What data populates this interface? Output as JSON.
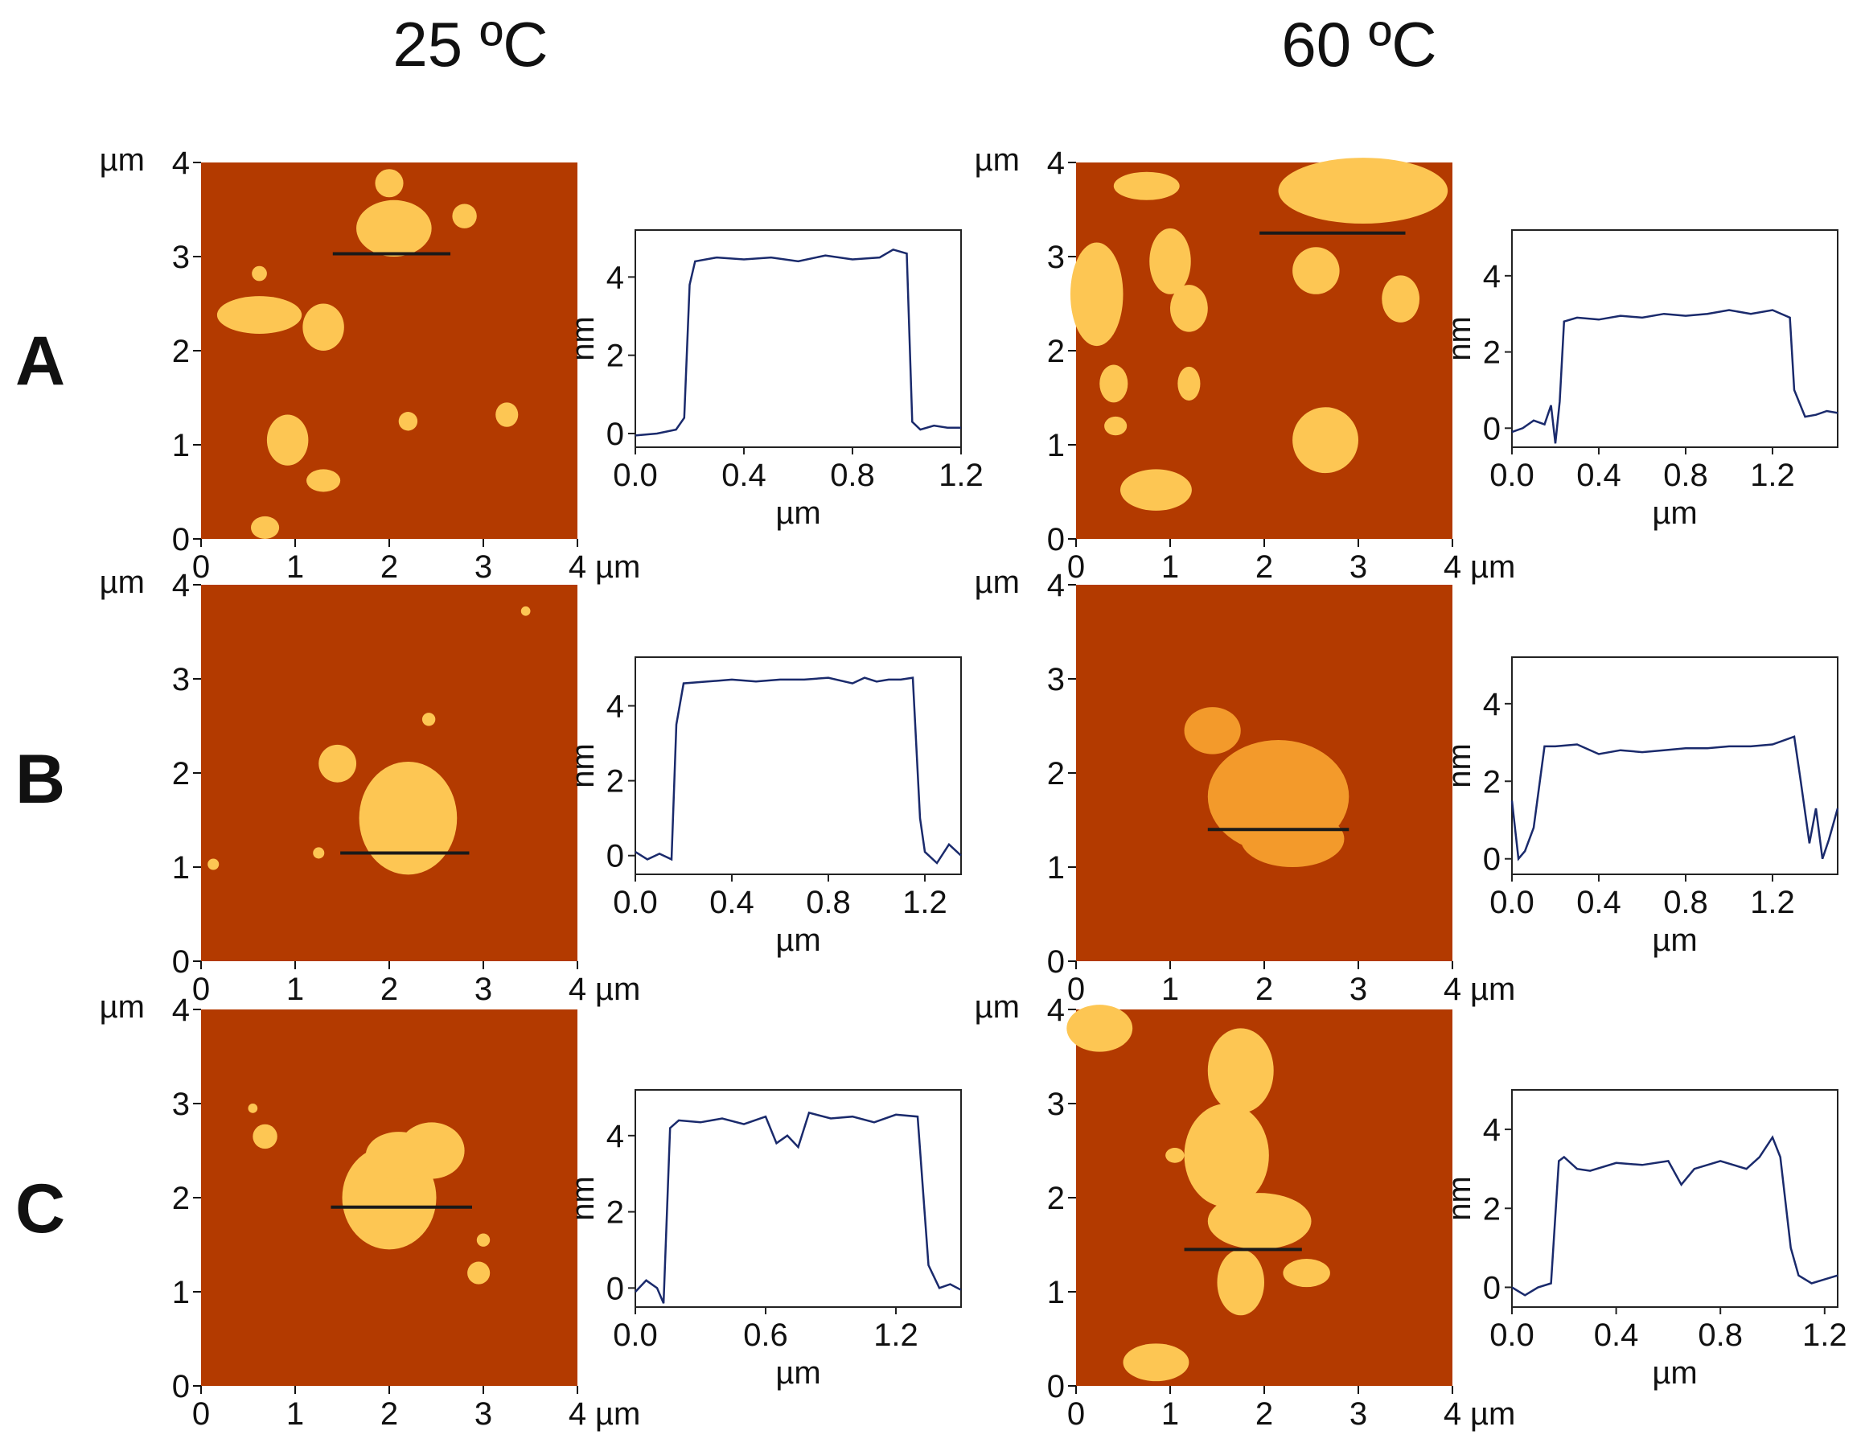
{
  "column_titles": [
    "25 ºC",
    "60 ºC"
  ],
  "row_labels": [
    "A",
    "B",
    "C"
  ],
  "colors": {
    "background": "#b33a00",
    "island": "#fdc653",
    "island_dim": "#f39a2b",
    "profile_line": "#1a2a6c",
    "scan_line": "#1a1a1a"
  },
  "chart_data": [
    {
      "id": "A-25",
      "type": "image",
      "column": "25 ºC",
      "row": "A",
      "xlabel": "µm",
      "ylabel": "µm",
      "xticks": [
        "0",
        "1",
        "2",
        "3",
        "4"
      ],
      "yticks": [
        "0",
        "1",
        "2",
        "3",
        "4"
      ],
      "xlim": [
        0,
        4
      ],
      "ylim": [
        0,
        4
      ],
      "islands": [
        {
          "cx": 2.05,
          "cy": 3.3,
          "rx": 0.4,
          "ry": 0.3
        },
        {
          "cx": 2.0,
          "cy": 3.78,
          "rx": 0.15,
          "ry": 0.15
        },
        {
          "cx": 0.62,
          "cy": 2.38,
          "rx": 0.45,
          "ry": 0.2
        },
        {
          "cx": 1.3,
          "cy": 2.25,
          "rx": 0.22,
          "ry": 0.25
        },
        {
          "cx": 0.92,
          "cy": 1.05,
          "rx": 0.22,
          "ry": 0.27
        },
        {
          "cx": 1.3,
          "cy": 0.62,
          "rx": 0.18,
          "ry": 0.12
        },
        {
          "cx": 2.2,
          "cy": 1.25,
          "rx": 0.1,
          "ry": 0.1
        },
        {
          "cx": 3.25,
          "cy": 1.32,
          "rx": 0.12,
          "ry": 0.13
        },
        {
          "cx": 2.8,
          "cy": 3.43,
          "rx": 0.13,
          "ry": 0.13
        },
        {
          "cx": 0.62,
          "cy": 2.82,
          "rx": 0.08,
          "ry": 0.08
        },
        {
          "cx": 0.68,
          "cy": 0.12,
          "rx": 0.15,
          "ry": 0.12
        }
      ],
      "scan_line": {
        "x1": 1.4,
        "x2": 2.65,
        "y": 3.03
      }
    },
    {
      "id": "A-25-profile",
      "type": "line",
      "column": "25 ºC",
      "row": "A",
      "xlabel": "µm",
      "ylabel": "nm",
      "xticks": [
        "0.0",
        "0.4",
        "0.8",
        "1.2"
      ],
      "xtick_values": [
        0,
        0.4,
        0.8,
        1.2
      ],
      "yticks": [
        "0",
        "2",
        "4"
      ],
      "ytick_values": [
        0,
        2,
        4
      ],
      "xlim": [
        0,
        1.2
      ],
      "ylim": [
        -0.35,
        5.2
      ],
      "x": [
        0.0,
        0.08,
        0.15,
        0.18,
        0.2,
        0.22,
        0.3,
        0.4,
        0.5,
        0.6,
        0.7,
        0.8,
        0.9,
        0.95,
        1.0,
        1.02,
        1.05,
        1.1,
        1.15,
        1.2
      ],
      "y": [
        -0.05,
        0.0,
        0.1,
        0.4,
        3.8,
        4.4,
        4.5,
        4.45,
        4.5,
        4.4,
        4.55,
        4.45,
        4.5,
        4.7,
        4.6,
        0.3,
        0.1,
        0.2,
        0.15,
        0.15
      ]
    },
    {
      "id": "A-60",
      "type": "image",
      "column": "60 ºC",
      "row": "A",
      "xlabel": "µm",
      "ylabel": "µm",
      "xticks": [
        "0",
        "1",
        "2",
        "3",
        "4"
      ],
      "yticks": [
        "0",
        "1",
        "2",
        "3",
        "4"
      ],
      "xlim": [
        0,
        4
      ],
      "ylim": [
        0,
        4
      ],
      "islands": [
        {
          "cx": 3.05,
          "cy": 3.7,
          "rx": 0.9,
          "ry": 0.35
        },
        {
          "cx": 0.75,
          "cy": 3.75,
          "rx": 0.35,
          "ry": 0.15
        },
        {
          "cx": 0.22,
          "cy": 2.6,
          "rx": 0.28,
          "ry": 0.55
        },
        {
          "cx": 1.0,
          "cy": 2.95,
          "rx": 0.22,
          "ry": 0.35
        },
        {
          "cx": 1.2,
          "cy": 2.45,
          "rx": 0.2,
          "ry": 0.25
        },
        {
          "cx": 2.55,
          "cy": 2.85,
          "rx": 0.25,
          "ry": 0.25
        },
        {
          "cx": 3.45,
          "cy": 2.55,
          "rx": 0.2,
          "ry": 0.25
        },
        {
          "cx": 0.4,
          "cy": 1.65,
          "rx": 0.15,
          "ry": 0.2
        },
        {
          "cx": 1.2,
          "cy": 1.65,
          "rx": 0.12,
          "ry": 0.18
        },
        {
          "cx": 2.65,
          "cy": 1.05,
          "rx": 0.35,
          "ry": 0.35
        },
        {
          "cx": 0.85,
          "cy": 0.52,
          "rx": 0.38,
          "ry": 0.22
        },
        {
          "cx": 0.42,
          "cy": 1.2,
          "rx": 0.12,
          "ry": 0.1
        }
      ],
      "scan_line": {
        "x1": 1.95,
        "x2": 3.5,
        "y": 3.25
      }
    },
    {
      "id": "A-60-profile",
      "type": "line",
      "column": "60 ºC",
      "row": "A",
      "xlabel": "µm",
      "ylabel": "nm",
      "xticks": [
        "0.0",
        "0.4",
        "0.8",
        "1.2"
      ],
      "xtick_values": [
        0,
        0.4,
        0.8,
        1.2
      ],
      "yticks": [
        "0",
        "2",
        "4"
      ],
      "ytick_values": [
        0,
        2,
        4
      ],
      "xlim": [
        0,
        1.5
      ],
      "ylim": [
        -0.5,
        5.2
      ],
      "x": [
        0.0,
        0.05,
        0.1,
        0.15,
        0.18,
        0.2,
        0.22,
        0.24,
        0.3,
        0.4,
        0.5,
        0.6,
        0.7,
        0.8,
        0.9,
        1.0,
        1.1,
        1.2,
        1.28,
        1.3,
        1.35,
        1.4,
        1.45,
        1.5
      ],
      "y": [
        -0.1,
        0.0,
        0.2,
        0.1,
        0.6,
        -0.4,
        0.7,
        2.8,
        2.9,
        2.85,
        2.95,
        2.9,
        3.0,
        2.95,
        3.0,
        3.1,
        3.0,
        3.1,
        2.9,
        1.0,
        0.3,
        0.35,
        0.45,
        0.4
      ]
    },
    {
      "id": "B-25",
      "type": "image",
      "column": "25 ºC",
      "row": "B",
      "xlabel": "µm",
      "ylabel": "µm",
      "xticks": [
        "0",
        "1",
        "2",
        "3",
        "4"
      ],
      "yticks": [
        "0",
        "1",
        "2",
        "3",
        "4"
      ],
      "xlim": [
        0,
        4
      ],
      "ylim": [
        0,
        4
      ],
      "islands": [
        {
          "cx": 2.2,
          "cy": 1.52,
          "rx": 0.52,
          "ry": 0.6
        },
        {
          "cx": 1.45,
          "cy": 2.1,
          "rx": 0.2,
          "ry": 0.2
        },
        {
          "cx": 2.42,
          "cy": 2.57,
          "rx": 0.07,
          "ry": 0.07
        },
        {
          "cx": 1.25,
          "cy": 1.15,
          "rx": 0.06,
          "ry": 0.06
        },
        {
          "cx": 0.13,
          "cy": 1.03,
          "rx": 0.06,
          "ry": 0.06
        },
        {
          "cx": 3.45,
          "cy": 3.72,
          "rx": 0.05,
          "ry": 0.05
        }
      ],
      "scan_line": {
        "x1": 1.48,
        "x2": 2.85,
        "y": 1.15
      }
    },
    {
      "id": "B-25-profile",
      "type": "line",
      "column": "25 ºC",
      "row": "B",
      "xlabel": "µm",
      "ylabel": "nm",
      "xticks": [
        "0.0",
        "0.4",
        "0.8",
        "1.2"
      ],
      "xtick_values": [
        0,
        0.4,
        0.8,
        1.2
      ],
      "yticks": [
        "0",
        "2",
        "4"
      ],
      "ytick_values": [
        0,
        2,
        4
      ],
      "xlim": [
        0,
        1.35
      ],
      "ylim": [
        -0.5,
        5.3
      ],
      "x": [
        0.0,
        0.05,
        0.1,
        0.15,
        0.17,
        0.2,
        0.3,
        0.4,
        0.5,
        0.6,
        0.7,
        0.8,
        0.9,
        0.95,
        1.0,
        1.05,
        1.1,
        1.15,
        1.18,
        1.2,
        1.25,
        1.3,
        1.35
      ],
      "y": [
        0.1,
        -0.1,
        0.05,
        -0.1,
        3.5,
        4.6,
        4.65,
        4.7,
        4.65,
        4.7,
        4.7,
        4.75,
        4.6,
        4.75,
        4.65,
        4.7,
        4.7,
        4.75,
        1.0,
        0.1,
        -0.2,
        0.3,
        0.0
      ]
    },
    {
      "id": "B-60",
      "type": "image",
      "column": "60 ºC",
      "row": "B",
      "xlabel": "µm",
      "ylabel": "µm",
      "xticks": [
        "0",
        "1",
        "2",
        "3",
        "4"
      ],
      "yticks": [
        "0",
        "1",
        "2",
        "3",
        "4"
      ],
      "xlim": [
        0,
        4
      ],
      "ylim": [
        0,
        4
      ],
      "islands": [
        {
          "cx": 2.15,
          "cy": 1.75,
          "rx": 0.75,
          "ry": 0.6
        },
        {
          "cx": 1.45,
          "cy": 2.45,
          "rx": 0.3,
          "ry": 0.25
        },
        {
          "cx": 2.3,
          "cy": 1.3,
          "rx": 0.55,
          "ry": 0.3
        }
      ],
      "scan_line": {
        "x1": 1.4,
        "x2": 2.9,
        "y": 1.4
      }
    },
    {
      "id": "B-60-profile",
      "type": "line",
      "column": "60 ºC",
      "row": "B",
      "xlabel": "µm",
      "ylabel": "nm",
      "xticks": [
        "0.0",
        "0.4",
        "0.8",
        "1.2"
      ],
      "xtick_values": [
        0,
        0.4,
        0.8,
        1.2
      ],
      "yticks": [
        "0",
        "2",
        "4"
      ],
      "ytick_values": [
        0,
        2,
        4
      ],
      "xlim": [
        0,
        1.5
      ],
      "ylim": [
        -0.4,
        5.2
      ],
      "x": [
        0.0,
        0.03,
        0.06,
        0.1,
        0.15,
        0.2,
        0.3,
        0.4,
        0.5,
        0.6,
        0.7,
        0.8,
        0.9,
        1.0,
        1.1,
        1.2,
        1.3,
        1.33,
        1.37,
        1.4,
        1.43,
        1.46,
        1.5
      ],
      "y": [
        1.5,
        0.0,
        0.2,
        0.8,
        2.9,
        2.9,
        2.95,
        2.7,
        2.8,
        2.75,
        2.8,
        2.85,
        2.85,
        2.9,
        2.9,
        2.95,
        3.15,
        2.0,
        0.4,
        1.3,
        0.0,
        0.5,
        1.3
      ]
    },
    {
      "id": "C-25",
      "type": "image",
      "column": "25 ºC",
      "row": "C",
      "xlabel": "µm",
      "ylabel": "µm",
      "xticks": [
        "0",
        "1",
        "2",
        "3",
        "4"
      ],
      "yticks": [
        "0",
        "1",
        "2",
        "3",
        "4"
      ],
      "xlim": [
        0,
        4
      ],
      "ylim": [
        0,
        4
      ],
      "islands": [
        {
          "cx": 2.0,
          "cy": 2.0,
          "rx": 0.5,
          "ry": 0.55
        },
        {
          "cx": 2.45,
          "cy": 2.5,
          "rx": 0.35,
          "ry": 0.3
        },
        {
          "cx": 2.1,
          "cy": 2.45,
          "rx": 0.35,
          "ry": 0.25
        },
        {
          "cx": 0.68,
          "cy": 2.65,
          "rx": 0.13,
          "ry": 0.13
        },
        {
          "cx": 2.95,
          "cy": 1.2,
          "rx": 0.12,
          "ry": 0.12
        },
        {
          "cx": 3.0,
          "cy": 1.55,
          "rx": 0.07,
          "ry": 0.07
        },
        {
          "cx": 0.55,
          "cy": 2.95,
          "rx": 0.05,
          "ry": 0.05
        }
      ],
      "scan_line": {
        "x1": 1.38,
        "x2": 2.88,
        "y": 1.9
      }
    },
    {
      "id": "C-25-profile",
      "type": "line",
      "column": "25 ºC",
      "row": "C",
      "xlabel": "µm",
      "ylabel": "nm",
      "xticks": [
        "0.0",
        "0.6",
        "1.2"
      ],
      "xtick_values": [
        0,
        0.6,
        1.2
      ],
      "yticks": [
        "0",
        "2",
        "4"
      ],
      "ytick_values": [
        0,
        2,
        4
      ],
      "xlim": [
        0,
        1.5
      ],
      "ylim": [
        -0.5,
        5.2
      ],
      "x": [
        0.0,
        0.05,
        0.1,
        0.13,
        0.16,
        0.2,
        0.3,
        0.4,
        0.5,
        0.6,
        0.65,
        0.7,
        0.75,
        0.8,
        0.9,
        1.0,
        1.1,
        1.2,
        1.3,
        1.35,
        1.4,
        1.45,
        1.5
      ],
      "y": [
        -0.1,
        0.2,
        0.0,
        -0.4,
        4.2,
        4.4,
        4.35,
        4.45,
        4.3,
        4.5,
        3.8,
        4.0,
        3.7,
        4.6,
        4.45,
        4.5,
        4.35,
        4.55,
        4.5,
        0.6,
        0.0,
        0.1,
        -0.05
      ]
    },
    {
      "id": "C-60",
      "type": "image",
      "column": "60 ºC",
      "row": "C",
      "xlabel": "µm",
      "ylabel": "µm",
      "xticks": [
        "0",
        "1",
        "2",
        "3",
        "4"
      ],
      "yticks": [
        "0",
        "1",
        "2",
        "3",
        "4"
      ],
      "xlim": [
        0,
        4
      ],
      "ylim": [
        0,
        4
      ],
      "islands": [
        {
          "cx": 1.75,
          "cy": 3.35,
          "rx": 0.35,
          "ry": 0.45
        },
        {
          "cx": 1.6,
          "cy": 2.45,
          "rx": 0.45,
          "ry": 0.55
        },
        {
          "cx": 1.95,
          "cy": 1.75,
          "rx": 0.55,
          "ry": 0.3
        },
        {
          "cx": 1.75,
          "cy": 1.1,
          "rx": 0.25,
          "ry": 0.35
        },
        {
          "cx": 0.25,
          "cy": 3.8,
          "rx": 0.35,
          "ry": 0.25
        },
        {
          "cx": 2.45,
          "cy": 1.2,
          "rx": 0.25,
          "ry": 0.15
        },
        {
          "cx": 0.85,
          "cy": 0.25,
          "rx": 0.35,
          "ry": 0.2
        },
        {
          "cx": 1.05,
          "cy": 2.45,
          "rx": 0.1,
          "ry": 0.08
        }
      ],
      "scan_line": {
        "x1": 1.15,
        "x2": 2.4,
        "y": 1.45
      }
    },
    {
      "id": "C-60-profile",
      "type": "line",
      "column": "60 ºC",
      "row": "C",
      "xlabel": "µm",
      "ylabel": "nm",
      "xticks": [
        "0.0",
        "0.4",
        "0.8",
        "1.2"
      ],
      "xtick_values": [
        0,
        0.4,
        0.8,
        1.2
      ],
      "yticks": [
        "0",
        "2",
        "4"
      ],
      "ytick_values": [
        0,
        2,
        4
      ],
      "xlim": [
        0,
        1.25
      ],
      "ylim": [
        -0.5,
        5.0
      ],
      "x": [
        0.0,
        0.05,
        0.1,
        0.15,
        0.18,
        0.2,
        0.25,
        0.3,
        0.4,
        0.5,
        0.6,
        0.65,
        0.7,
        0.8,
        0.9,
        0.95,
        1.0,
        1.03,
        1.07,
        1.1,
        1.15,
        1.2,
        1.25
      ],
      "y": [
        0.0,
        -0.2,
        0.0,
        0.1,
        3.2,
        3.3,
        3.0,
        2.95,
        3.15,
        3.1,
        3.2,
        2.6,
        3.0,
        3.2,
        3.0,
        3.3,
        3.8,
        3.3,
        1.0,
        0.3,
        0.1,
        0.2,
        0.3
      ]
    }
  ]
}
